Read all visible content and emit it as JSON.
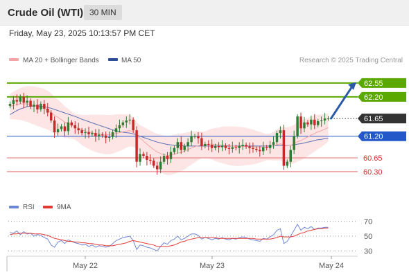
{
  "header": {
    "title": "Crude Oil (WTI)",
    "timeframe": "30 MIN"
  },
  "datetime": "Friday, May 23, 2025 10:13:57 PM CET",
  "legend": {
    "ma20_bb": "MA 20 + Bollinger Bands",
    "ma50": "MA 50",
    "credit": "Research © 2025 Trading Central",
    "rsi": "RSI",
    "rsi_ma": "9MA"
  },
  "colors": {
    "candle_up": "#2e7d32",
    "candle_down": "#c62828",
    "ma20": "#f4a6a6",
    "bollinger_fill": "#fde0e0",
    "ma50": "#5a6fb0",
    "resistance": "#5aa800",
    "pivot": "#2458c9",
    "support": "#e57373",
    "last_price": "#333333",
    "arrow": "#2b5aa8",
    "rsi": "#6e86d6",
    "rsi_ma": "#e53935"
  },
  "chart_data": [
    {
      "type": "candlestick",
      "title": "Crude Oil (WTI)",
      "timeframe": "30 MIN",
      "x_tick_labels": [
        "May 22",
        "May 23",
        "May 24"
      ],
      "y_range": [
        59.7,
        62.9
      ],
      "price_levels": [
        {
          "value": 62.55,
          "label": "62.55",
          "kind": "resistance"
        },
        {
          "value": 62.2,
          "label": "62.20",
          "kind": "resistance"
        },
        {
          "value": 61.65,
          "label": "61.65",
          "kind": "last"
        },
        {
          "value": 61.2,
          "label": "61.20",
          "kind": "pivot"
        },
        {
          "value": 60.65,
          "label": "60.65",
          "kind": "support"
        },
        {
          "value": 60.3,
          "label": "60.30",
          "kind": "support"
        }
      ],
      "forecast": {
        "from": 61.65,
        "to": 62.55,
        "direction": "up"
      },
      "close_series": [
        62.02,
        62.12,
        62.08,
        62.2,
        62.05,
        62.1,
        61.95,
        62.0,
        61.88,
        62.02,
        61.9,
        61.8,
        61.6,
        61.3,
        61.38,
        61.45,
        61.33,
        61.55,
        61.48,
        61.4,
        61.35,
        61.28,
        61.3,
        61.25,
        61.28,
        61.2,
        61.24,
        61.22,
        61.16,
        61.18,
        61.3,
        61.4,
        61.48,
        61.55,
        61.6,
        61.62,
        61.35,
        60.55,
        60.75,
        60.7,
        60.6,
        60.58,
        60.45,
        60.36,
        60.55,
        60.7,
        60.62,
        60.8,
        60.9,
        61.05,
        60.85,
        60.95,
        61.05,
        61.2,
        61.2,
        61.15,
        60.95,
        61.0,
        60.98,
        60.9,
        60.95,
        60.92,
        60.96,
        60.9,
        60.88,
        60.92,
        60.9,
        60.95,
        60.98,
        60.94,
        60.9,
        60.88,
        60.85,
        60.82,
        60.92,
        60.9,
        60.98,
        61.05,
        61.28,
        61.35,
        60.45,
        60.55,
        60.85,
        61.2,
        61.7,
        61.4,
        61.55,
        61.5,
        61.62,
        61.48,
        61.58,
        61.6,
        61.65,
        61.65
      ],
      "ma20_series": [
        61.95,
        61.98,
        62.0,
        62.02,
        62.02,
        62.02,
        62.0,
        61.98,
        61.95,
        61.93,
        61.9,
        61.86,
        61.8,
        61.73,
        61.68,
        61.62,
        61.56,
        61.52,
        61.48,
        61.44,
        61.4,
        61.36,
        61.33,
        61.31,
        61.29,
        61.27,
        61.26,
        61.25,
        61.24,
        61.24,
        61.25,
        61.27,
        61.29,
        61.31,
        61.33,
        61.34,
        61.3,
        61.22,
        61.15,
        61.08,
        61.0,
        60.93,
        60.86,
        60.8,
        60.76,
        60.73,
        60.71,
        60.72,
        60.74,
        60.77,
        60.79,
        60.82,
        60.86,
        60.9,
        60.93,
        60.96,
        60.98,
        60.99,
        61.0,
        61.0,
        60.99,
        60.98,
        60.98,
        60.97,
        60.96,
        60.95,
        60.94,
        60.94,
        60.94,
        60.94,
        60.93,
        60.93,
        60.92,
        60.92,
        60.92,
        60.92,
        60.93,
        60.95,
        60.98,
        61.01,
        60.98,
        60.96,
        60.97,
        61.0,
        61.06,
        61.09,
        61.14,
        61.18,
        61.23,
        61.27,
        61.31,
        61.34,
        61.38,
        61.42
      ],
      "ma50_series": [
        61.75,
        61.8,
        61.85,
        61.89,
        61.92,
        61.95,
        61.96,
        61.97,
        61.97,
        61.96,
        61.95,
        61.93,
        61.91,
        61.88,
        61.85,
        61.82,
        61.79,
        61.76,
        61.73,
        61.7,
        61.67,
        61.63,
        61.6,
        61.57,
        61.54,
        61.51,
        61.48,
        61.45,
        61.42,
        61.39,
        61.36,
        61.34,
        61.32,
        61.3,
        61.29,
        61.28,
        61.26,
        61.23,
        61.2,
        61.17,
        61.14,
        61.11,
        61.08,
        61.05,
        61.03,
        61.01,
        60.99,
        60.98,
        60.97,
        60.96,
        60.96,
        60.95,
        60.95,
        60.95,
        60.95,
        60.95,
        60.95,
        60.95,
        60.95,
        60.95,
        60.95,
        60.95,
        60.95,
        60.95,
        60.95,
        60.95,
        60.95,
        60.95,
        60.95,
        60.95,
        60.95,
        60.95,
        60.95,
        60.95,
        60.95,
        60.95,
        60.95,
        60.95,
        60.96,
        60.97,
        60.96,
        60.96,
        60.97,
        60.98,
        61.0,
        61.01,
        61.03,
        61.05,
        61.07,
        61.09,
        61.11,
        61.12,
        61.14,
        61.15
      ]
    },
    {
      "type": "line",
      "title": "RSI",
      "y_ticks": [
        70,
        50,
        30
      ],
      "ylim": [
        20,
        80
      ],
      "series": [
        {
          "name": "RSI",
          "values": [
            55,
            54,
            57,
            52,
            56,
            53,
            54,
            50,
            52,
            51,
            48,
            46,
            38,
            35,
            42,
            44,
            40,
            45,
            43,
            41,
            40,
            38,
            39,
            36,
            38,
            35,
            37,
            36,
            35,
            36,
            40,
            44,
            46,
            48,
            49,
            50,
            44,
            32,
            38,
            37,
            35,
            34,
            32,
            30,
            36,
            41,
            39,
            44,
            46,
            50,
            45,
            47,
            50,
            53,
            53,
            51,
            46,
            48,
            47,
            45,
            47,
            46,
            48,
            46,
            45,
            47,
            46,
            48,
            49,
            48,
            46,
            45,
            44,
            43,
            47,
            46,
            49,
            52,
            58,
            60,
            40,
            43,
            50,
            58,
            66,
            58,
            62,
            60,
            63,
            59,
            61,
            61,
            62,
            62
          ]
        },
        {
          "name": "9MA",
          "values": [
            52,
            53,
            53,
            54,
            54,
            54,
            54,
            53,
            53,
            53,
            52,
            51,
            49,
            47,
            46,
            45,
            44,
            43,
            43,
            42,
            42,
            41,
            41,
            40,
            40,
            39,
            38,
            38,
            37,
            37,
            37,
            38,
            39,
            40,
            41,
            43,
            44,
            43,
            42,
            41,
            40,
            39,
            38,
            36,
            36,
            36,
            36,
            37,
            38,
            40,
            42,
            43,
            45,
            46,
            47,
            48,
            48,
            48,
            48,
            48,
            48,
            47,
            47,
            47,
            47,
            47,
            47,
            47,
            47,
            47,
            47,
            47,
            46,
            46,
            46,
            46,
            46,
            47,
            48,
            50,
            49,
            49,
            49,
            50,
            52,
            54,
            55,
            57,
            58,
            59,
            60,
            60,
            61,
            61
          ]
        }
      ]
    }
  ]
}
